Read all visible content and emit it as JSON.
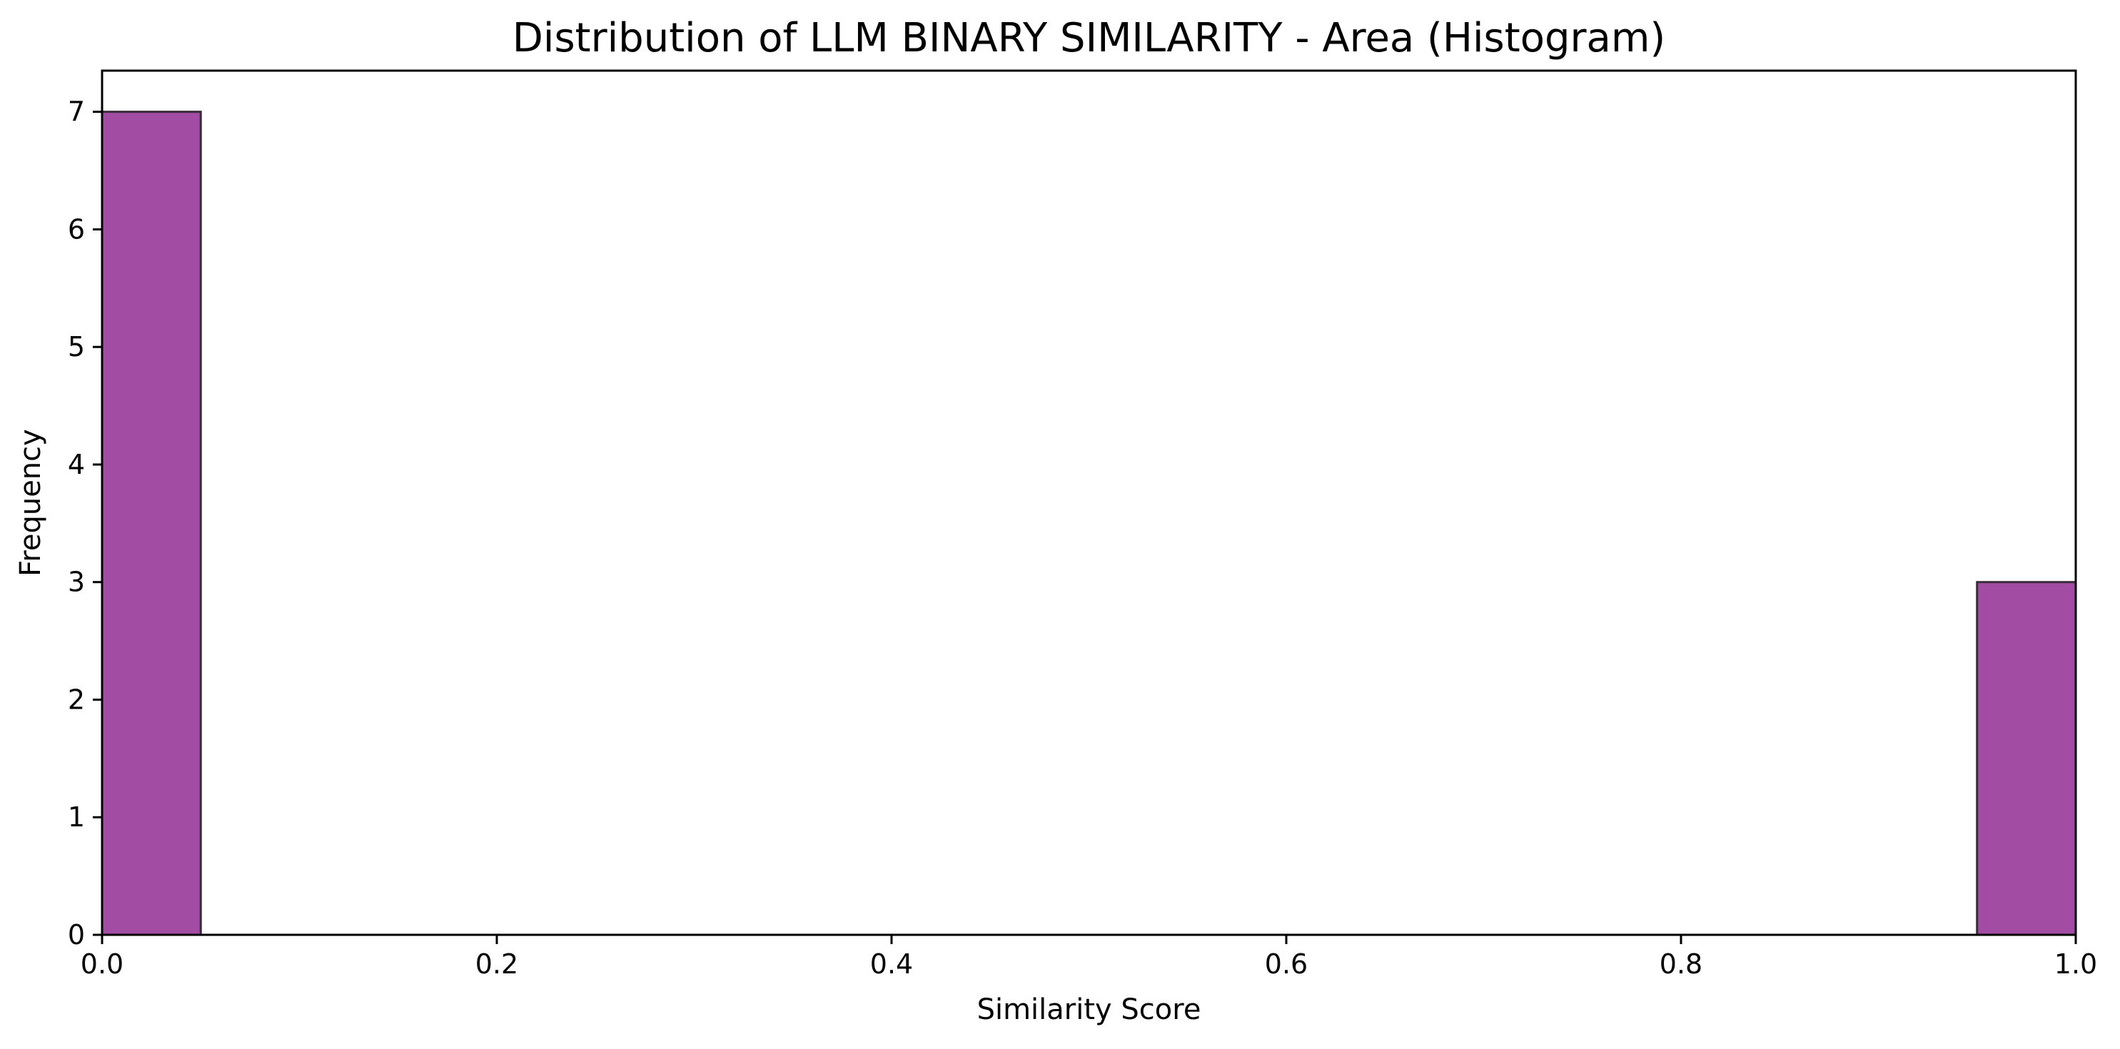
{
  "chart_data": {
    "type": "bar",
    "title": "Distribution of LLM BINARY SIMILARITY - Area (Histogram)",
    "xlabel": "Similarity Score",
    "ylabel": "Frequency",
    "xlim": [
      0.0,
      1.0
    ],
    "ylim": [
      0,
      7.35
    ],
    "xticks": [
      0.0,
      0.2,
      0.4,
      0.6,
      0.8,
      1.0
    ],
    "xtick_labels": [
      "0.0",
      "0.2",
      "0.4",
      "0.6",
      "0.8",
      "1.0"
    ],
    "yticks": [
      0,
      1,
      2,
      3,
      4,
      5,
      6,
      7
    ],
    "ytick_labels": [
      "0",
      "1",
      "2",
      "3",
      "4",
      "5",
      "6",
      "7"
    ],
    "bins": [
      {
        "x0": 0.0,
        "x1": 0.05,
        "count": 7
      },
      {
        "x0": 0.95,
        "x1": 1.0,
        "count": 3
      }
    ],
    "bar_color": "#a24da3",
    "bar_edge_color": "#3a2a3a",
    "grid": false,
    "legend": "none"
  }
}
